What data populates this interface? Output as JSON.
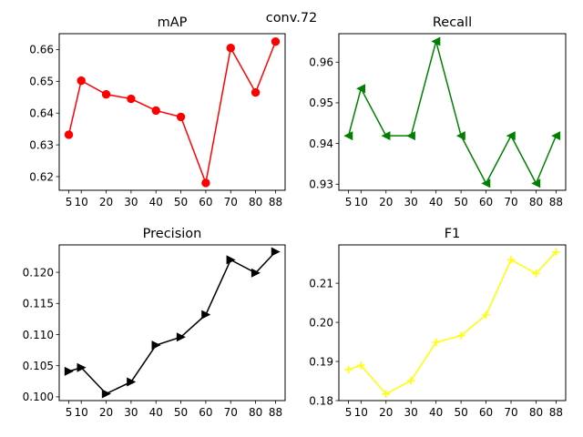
{
  "figure": {
    "suptitle": "conv.72"
  },
  "chart_data": [
    {
      "type": "line",
      "title": "mAP",
      "xlabel": "",
      "ylabel": "",
      "x": [
        5,
        10,
        20,
        30,
        40,
        50,
        60,
        70,
        80,
        88
      ],
      "x_ticks": [
        "5",
        "10",
        "20",
        "30",
        "40",
        "50",
        "60",
        "70",
        "80",
        "88"
      ],
      "series": [
        {
          "values": [
            0.6332,
            0.6502,
            0.6459,
            0.6445,
            0.6408,
            0.6388,
            0.618,
            0.6605,
            0.6465,
            0.6625
          ]
        }
      ],
      "color": "#ff0000",
      "marker": "circle",
      "ylim": [
        0.6157,
        0.665
      ],
      "y_ticks": [
        0.62,
        0.63,
        0.64,
        0.65,
        0.66
      ],
      "y_tick_labels": [
        "0.62",
        "0.63",
        "0.64",
        "0.65",
        "0.66"
      ],
      "grid": false
    },
    {
      "type": "line",
      "title": "Recall",
      "xlabel": "",
      "ylabel": "",
      "x": [
        5,
        10,
        20,
        30,
        40,
        50,
        60,
        70,
        80,
        88
      ],
      "x_ticks": [
        "5",
        "10",
        "20",
        "30",
        "40",
        "50",
        "60",
        "70",
        "80",
        "88"
      ],
      "series": [
        {
          "values": [
            0.9419,
            0.9535,
            0.9419,
            0.9419,
            0.9651,
            0.9419,
            0.9302,
            0.9419,
            0.9302,
            0.9419
          ]
        }
      ],
      "color": "#008000",
      "marker": "triangle-left",
      "ylim": [
        0.9285,
        0.967
      ],
      "y_ticks": [
        0.93,
        0.94,
        0.95,
        0.96
      ],
      "y_tick_labels": [
        "0.93",
        "0.94",
        "0.95",
        "0.96"
      ],
      "grid": false
    },
    {
      "type": "line",
      "title": "Precision",
      "xlabel": "",
      "ylabel": "",
      "x": [
        5,
        10,
        20,
        30,
        40,
        50,
        60,
        70,
        80,
        88
      ],
      "x_ticks": [
        "5",
        "10",
        "20",
        "30",
        "40",
        "50",
        "60",
        "70",
        "80",
        "88"
      ],
      "series": [
        {
          "values": [
            0.1041,
            0.1047,
            0.1005,
            0.1024,
            0.1083,
            0.1096,
            0.1132,
            0.122,
            0.1199,
            0.1233
          ]
        }
      ],
      "color": "#000000",
      "marker": "triangle-right",
      "ylim": [
        0.0994,
        0.1244
      ],
      "y_ticks": [
        0.1,
        0.105,
        0.11,
        0.115,
        0.12
      ],
      "y_tick_labels": [
        "0.100",
        "0.105",
        "0.110",
        "0.115",
        "0.120"
      ],
      "grid": false
    },
    {
      "type": "line",
      "title": "F1",
      "xlabel": "",
      "ylabel": "",
      "x": [
        5,
        10,
        20,
        30,
        40,
        50,
        60,
        70,
        80,
        88
      ],
      "x_ticks": [
        "5",
        "10",
        "20",
        "30",
        "40",
        "50",
        "60",
        "70",
        "80",
        "88"
      ],
      "series": [
        {
          "values": [
            0.1879,
            0.189,
            0.1817,
            0.1851,
            0.1949,
            0.1966,
            0.2019,
            0.216,
            0.2125,
            0.218
          ]
        }
      ],
      "color": "#ffff00",
      "marker": "plus",
      "ylim": [
        0.18,
        0.2198
      ],
      "y_ticks": [
        0.18,
        0.19,
        0.2,
        0.21
      ],
      "y_tick_labels": [
        "0.18",
        "0.19",
        "0.20",
        "0.21"
      ],
      "grid": false
    }
  ]
}
